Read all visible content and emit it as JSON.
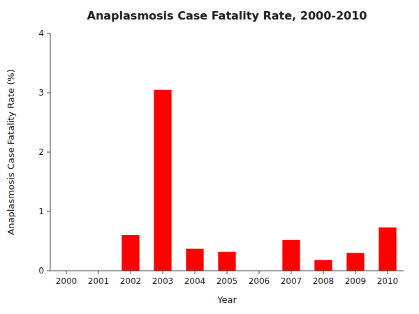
{
  "chart_data": {
    "type": "bar",
    "title": "Anaplasmosis Case Fatality Rate, 2000-2010",
    "xlabel": "Year",
    "ylabel": "Anaplasmosis Case Fatality Rate (%)",
    "categories": [
      "2000",
      "2001",
      "2002",
      "2003",
      "2004",
      "2005",
      "2006",
      "2007",
      "2008",
      "2009",
      "2010"
    ],
    "values": [
      0.0,
      0.0,
      0.6,
      3.05,
      0.37,
      0.32,
      0.0,
      0.52,
      0.18,
      0.3,
      0.73
    ],
    "color": "#ff0000",
    "ylim": [
      0,
      4
    ],
    "yticks": [
      0,
      1,
      2,
      3,
      4
    ]
  }
}
